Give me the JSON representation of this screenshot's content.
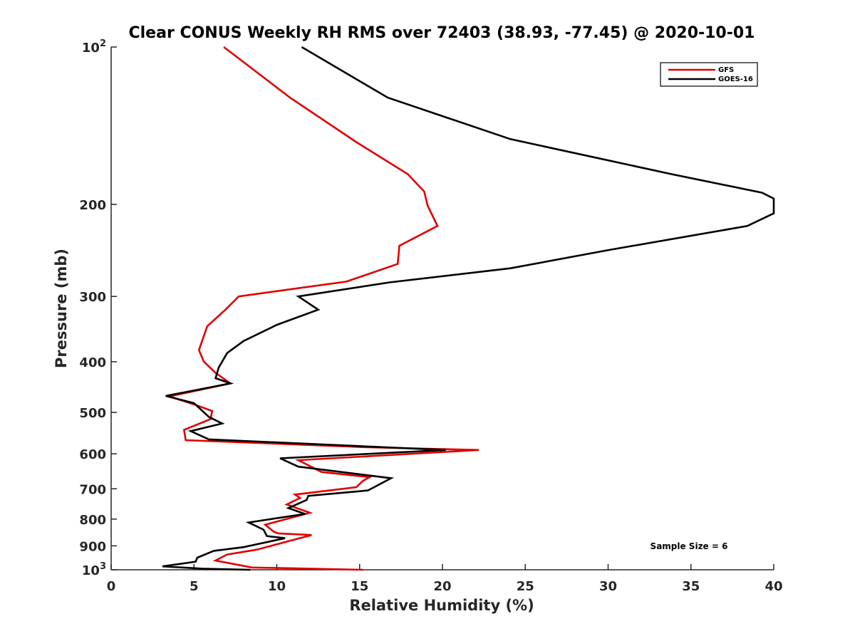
{
  "chart_data": {
    "type": "line",
    "title": "Clear CONUS Weekly RH RMS over 72403 (38.93, -77.45) @ 2020-10-01",
    "xlabel": "Relative Humidity (%)",
    "ylabel": "Pressure (mb)",
    "xlim": [
      0,
      40
    ],
    "ylim": [
      100,
      1000
    ],
    "y_scale": "log",
    "y_reversed": true,
    "x_ticks": [
      "0",
      "5",
      "10",
      "15",
      "20",
      "25",
      "30",
      "35",
      "40"
    ],
    "y_ticks": [
      {
        "value": 100,
        "label": "10",
        "sup": "2"
      },
      {
        "value": 200,
        "label": "200",
        "sup": ""
      },
      {
        "value": 300,
        "label": "300",
        "sup": ""
      },
      {
        "value": 400,
        "label": "400",
        "sup": ""
      },
      {
        "value": 500,
        "label": "500",
        "sup": ""
      },
      {
        "value": 600,
        "label": "600",
        "sup": ""
      },
      {
        "value": 700,
        "label": "700",
        "sup": ""
      },
      {
        "value": 800,
        "label": "800",
        "sup": ""
      },
      {
        "value": 900,
        "label": "900",
        "sup": ""
      },
      {
        "value": 1000,
        "label": "10",
        "sup": "3"
      }
    ],
    "grid": false,
    "legend_position": "top-right",
    "annotation": "Sample Size = 6",
    "series": [
      {
        "name": "GFS",
        "color": "#e00000",
        "points": [
          [
            6.8,
            100
          ],
          [
            10.8,
            125
          ],
          [
            14.8,
            152
          ],
          [
            17.9,
            175
          ],
          [
            18.9,
            189
          ],
          [
            19.1,
            201
          ],
          [
            19.7,
            220
          ],
          [
            17.4,
            240
          ],
          [
            17.3,
            260
          ],
          [
            14.2,
            281
          ],
          [
            7.7,
            300
          ],
          [
            6.9,
            318
          ],
          [
            5.8,
            342
          ],
          [
            5.3,
            380
          ],
          [
            5.6,
            400
          ],
          [
            6.3,
            420
          ],
          [
            7.2,
            440
          ],
          [
            3.5,
            466
          ],
          [
            5.2,
            485
          ],
          [
            6.1,
            497
          ],
          [
            6.0,
            515
          ],
          [
            4.4,
            540
          ],
          [
            4.5,
            565
          ],
          [
            15.5,
            583
          ],
          [
            22.2,
            590
          ],
          [
            11.3,
            617
          ],
          [
            12.7,
            650
          ],
          [
            15.6,
            665
          ],
          [
            15.2,
            676
          ],
          [
            14.8,
            695
          ],
          [
            11.1,
            718
          ],
          [
            11.4,
            729
          ],
          [
            10.6,
            750
          ],
          [
            12.0,
            778
          ],
          [
            9.3,
            820
          ],
          [
            9.8,
            845
          ],
          [
            10.1,
            852
          ],
          [
            12.1,
            858
          ],
          [
            10.8,
            880
          ],
          [
            8.8,
            915
          ],
          [
            7.0,
            935
          ],
          [
            6.3,
            960
          ],
          [
            8.5,
            990
          ],
          [
            15.2,
            1000
          ]
        ]
      },
      {
        "name": "GOES-16",
        "color": "#000000",
        "points": [
          [
            11.5,
            100
          ],
          [
            16.7,
            125
          ],
          [
            24.1,
            150
          ],
          [
            33.8,
            175
          ],
          [
            39.3,
            190
          ],
          [
            40.0,
            195
          ],
          [
            40.0,
            208
          ],
          [
            38.4,
            220
          ],
          [
            29.9,
            245
          ],
          [
            24.1,
            265
          ],
          [
            16.8,
            282
          ],
          [
            11.3,
            300
          ],
          [
            12.5,
            318
          ],
          [
            10.0,
            340
          ],
          [
            8.0,
            365
          ],
          [
            7.0,
            385
          ],
          [
            6.5,
            410
          ],
          [
            6.3,
            430
          ],
          [
            7.2,
            440
          ],
          [
            3.3,
            465
          ],
          [
            5.0,
            480
          ],
          [
            5.9,
            510
          ],
          [
            6.7,
            525
          ],
          [
            4.8,
            543
          ],
          [
            5.9,
            563
          ],
          [
            20.2,
            590
          ],
          [
            10.2,
            612
          ],
          [
            11.3,
            635
          ],
          [
            16.9,
            668
          ],
          [
            15.5,
            705
          ],
          [
            11.9,
            722
          ],
          [
            11.8,
            735
          ],
          [
            10.7,
            762
          ],
          [
            11.7,
            782
          ],
          [
            8.3,
            812
          ],
          [
            9.2,
            838
          ],
          [
            9.4,
            862
          ],
          [
            10.5,
            870
          ],
          [
            8.0,
            905
          ],
          [
            6.2,
            920
          ],
          [
            5.2,
            948
          ],
          [
            5.1,
            965
          ],
          [
            3.1,
            985
          ],
          [
            5.5,
            995
          ],
          [
            8.4,
            1000
          ]
        ]
      }
    ]
  }
}
